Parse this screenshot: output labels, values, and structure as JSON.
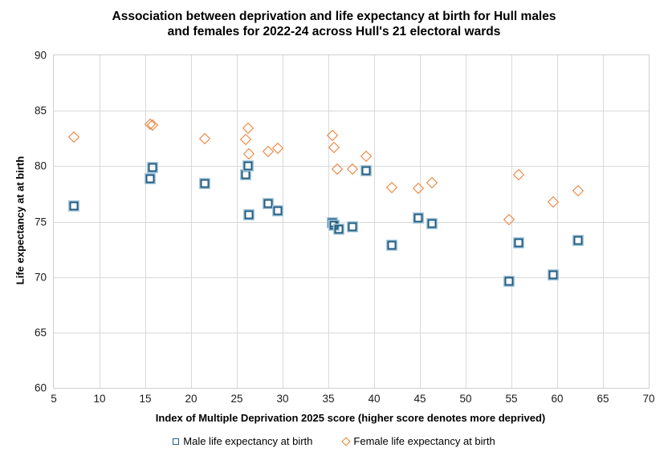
{
  "chart_data": {
    "type": "scatter",
    "title": "Association between deprivation and life expectancy at birth for Hull males and females for 2022-24 across Hull's 21 electoral wards",
    "title_lines": [
      "Association between deprivation and life expectancy at birth for Hull males",
      "and females for 2022-24 across Hull's 21 electoral wards"
    ],
    "xlabel": "Index of Multiple Deprivation 2025 score (higher score denotes more deprived)",
    "ylabel": "Life expectancy at at birth",
    "xlim": [
      5,
      70
    ],
    "ylim": [
      60,
      90
    ],
    "x_ticks": [
      5,
      10,
      15,
      20,
      25,
      30,
      35,
      40,
      45,
      50,
      55,
      60,
      65,
      70
    ],
    "y_ticks": [
      60,
      65,
      70,
      75,
      80,
      85,
      90
    ],
    "grid": true,
    "legend_position": "bottom",
    "series": [
      {
        "name": "Male life expectancy at birth",
        "marker": "square",
        "color": "#255e82",
        "halo_color": "#a9cbde",
        "points": [
          [
            7.2,
            76.4
          ],
          [
            15.5,
            78.9
          ],
          [
            15.8,
            79.9
          ],
          [
            21.5,
            78.4
          ],
          [
            26.0,
            79.2
          ],
          [
            26.2,
            80.0
          ],
          [
            26.3,
            75.6
          ],
          [
            28.4,
            76.6
          ],
          [
            29.5,
            76.0
          ],
          [
            35.4,
            74.9
          ],
          [
            35.6,
            74.7
          ],
          [
            36.1,
            74.3
          ],
          [
            37.6,
            74.5
          ],
          [
            39.1,
            79.6
          ],
          [
            41.9,
            72.9
          ],
          [
            44.8,
            75.3
          ],
          [
            46.3,
            74.8
          ],
          [
            54.7,
            69.6
          ],
          [
            55.8,
            73.1
          ],
          [
            59.6,
            70.2
          ],
          [
            62.3,
            73.3
          ]
        ]
      },
      {
        "name": "Female life expectancy at birth",
        "marker": "diamond",
        "color": "#ed7d31",
        "points": [
          [
            7.2,
            82.6
          ],
          [
            15.5,
            83.8
          ],
          [
            15.8,
            83.7
          ],
          [
            21.5,
            82.5
          ],
          [
            26.0,
            82.4
          ],
          [
            26.2,
            83.4
          ],
          [
            26.3,
            81.1
          ],
          [
            28.4,
            81.3
          ],
          [
            29.5,
            81.6
          ],
          [
            35.4,
            82.8
          ],
          [
            35.6,
            81.7
          ],
          [
            36.0,
            79.7
          ],
          [
            37.6,
            79.7
          ],
          [
            39.1,
            80.9
          ],
          [
            41.9,
            78.1
          ],
          [
            44.8,
            78.0
          ],
          [
            46.3,
            78.5
          ],
          [
            54.7,
            75.2
          ],
          [
            55.8,
            79.2
          ],
          [
            59.6,
            76.8
          ],
          [
            62.3,
            77.8
          ]
        ]
      }
    ],
    "colors": {
      "gridline": "#d9d9d9",
      "plot_border": "#cfcfcf",
      "text": "#000000"
    }
  }
}
